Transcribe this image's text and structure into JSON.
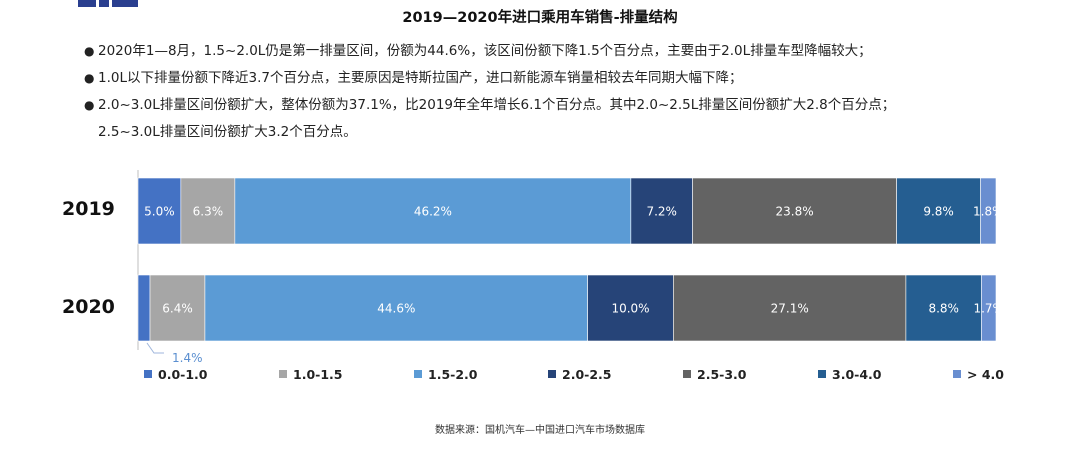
{
  "title": "2019—2020年进口乘用车销售-排量结构",
  "bullets": [
    {
      "line1": "2020年1—8月，1.5~2.0L仍是第一排量区间，份额为44.6%，该区间份额下降1.5个百分点，主要由于2.0L排量车型降幅较大；"
    },
    {
      "line1": "1.0L以下排量份额下降近3.7个百分点，主要原因是特斯拉国产，进口新能源车销量相较去年同期大幅下降；"
    },
    {
      "line1": "2.0~3.0L排量区间份额扩大，整体份额为37.1%，比2019年全年增长6.1个百分点。其中2.0~2.5L排量区间份额扩大2.8个百分点；",
      "line2": "2.5~3.0L排量区间份额扩大3.2个百分点。"
    }
  ],
  "bullet_symbol": "●",
  "source": "数据来源：国机汽车—中国进口汽车市场数据库",
  "chart_data": {
    "type": "bar",
    "orientation": "horizontal",
    "stacked": "100%",
    "categories": [
      "2019",
      "2020"
    ],
    "legend_position": "bottom",
    "series": [
      {
        "name": "0.0-1.0",
        "color": "#4472c4",
        "values": [
          5.0,
          1.4
        ],
        "labels": [
          "5.0%",
          "1.4%"
        ],
        "label_color": "#ffffff",
        "callout": [
          false,
          true
        ],
        "callout_color": "#5b8fd0"
      },
      {
        "name": "1.0-1.5",
        "color": "#a6a6a6",
        "values": [
          6.3,
          6.4
        ],
        "labels": [
          "6.3%",
          "6.4%"
        ],
        "label_color": "#ffffff"
      },
      {
        "name": "1.5-2.0",
        "color": "#5b9bd5",
        "values": [
          46.2,
          44.6
        ],
        "labels": [
          "46.2%",
          "44.6%"
        ],
        "label_color": "#ffffff"
      },
      {
        "name": "2.0-2.5",
        "color": "#264478",
        "values": [
          7.2,
          10.0
        ],
        "labels": [
          "7.2%",
          "10.0%"
        ],
        "label_color": "#ffffff"
      },
      {
        "name": "2.5-3.0",
        "color": "#636363",
        "values": [
          23.8,
          27.1
        ],
        "labels": [
          "23.8%",
          "27.1%"
        ],
        "label_color": "#ffffff"
      },
      {
        "name": "3.0-4.0",
        "color": "#255e91",
        "values": [
          9.8,
          8.8
        ],
        "labels": [
          "9.8%",
          "8.8%"
        ],
        "label_color": "#ffffff"
      },
      {
        "name": "> 4.0",
        "color": "#698ed0",
        "values": [
          1.8,
          1.7
        ],
        "labels": [
          "1.8%",
          "1.7%"
        ],
        "label_color": "#ffffff"
      }
    ]
  }
}
